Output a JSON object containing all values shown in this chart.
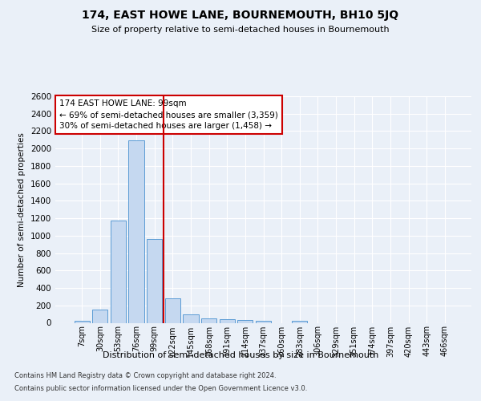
{
  "title": "174, EAST HOWE LANE, BOURNEMOUTH, BH10 5JQ",
  "subtitle": "Size of property relative to semi-detached houses in Bournemouth",
  "xlabel_bottom": "Distribution of semi-detached houses by size in Bournemouth",
  "ylabel": "Number of semi-detached properties",
  "categories": [
    "7sqm",
    "30sqm",
    "53sqm",
    "76sqm",
    "99sqm",
    "122sqm",
    "145sqm",
    "168sqm",
    "191sqm",
    "214sqm",
    "237sqm",
    "260sqm",
    "283sqm",
    "306sqm",
    "329sqm",
    "351sqm",
    "374sqm",
    "397sqm",
    "420sqm",
    "443sqm",
    "466sqm"
  ],
  "values": [
    20,
    150,
    1170,
    2090,
    960,
    280,
    100,
    50,
    45,
    35,
    20,
    0,
    25,
    0,
    0,
    0,
    0,
    0,
    0,
    0,
    0
  ],
  "bar_color": "#c5d8f0",
  "bar_edge_color": "#5b9bd5",
  "highlight_line_idx": 4,
  "highlight_line_color": "#cc0000",
  "annotation_text": "174 EAST HOWE LANE: 99sqm\n← 69% of semi-detached houses are smaller (3,359)\n30% of semi-detached houses are larger (1,458) →",
  "annotation_box_color": "#cc0000",
  "ylim": [
    0,
    2600
  ],
  "yticks": [
    0,
    200,
    400,
    600,
    800,
    1000,
    1200,
    1400,
    1600,
    1800,
    2000,
    2200,
    2400,
    2600
  ],
  "footer1": "Contains HM Land Registry data © Crown copyright and database right 2024.",
  "footer2": "Contains public sector information licensed under the Open Government Licence v3.0.",
  "bg_color": "#eaf0f8",
  "plot_bg_color": "#eaf0f8",
  "grid_color": "#ffffff"
}
